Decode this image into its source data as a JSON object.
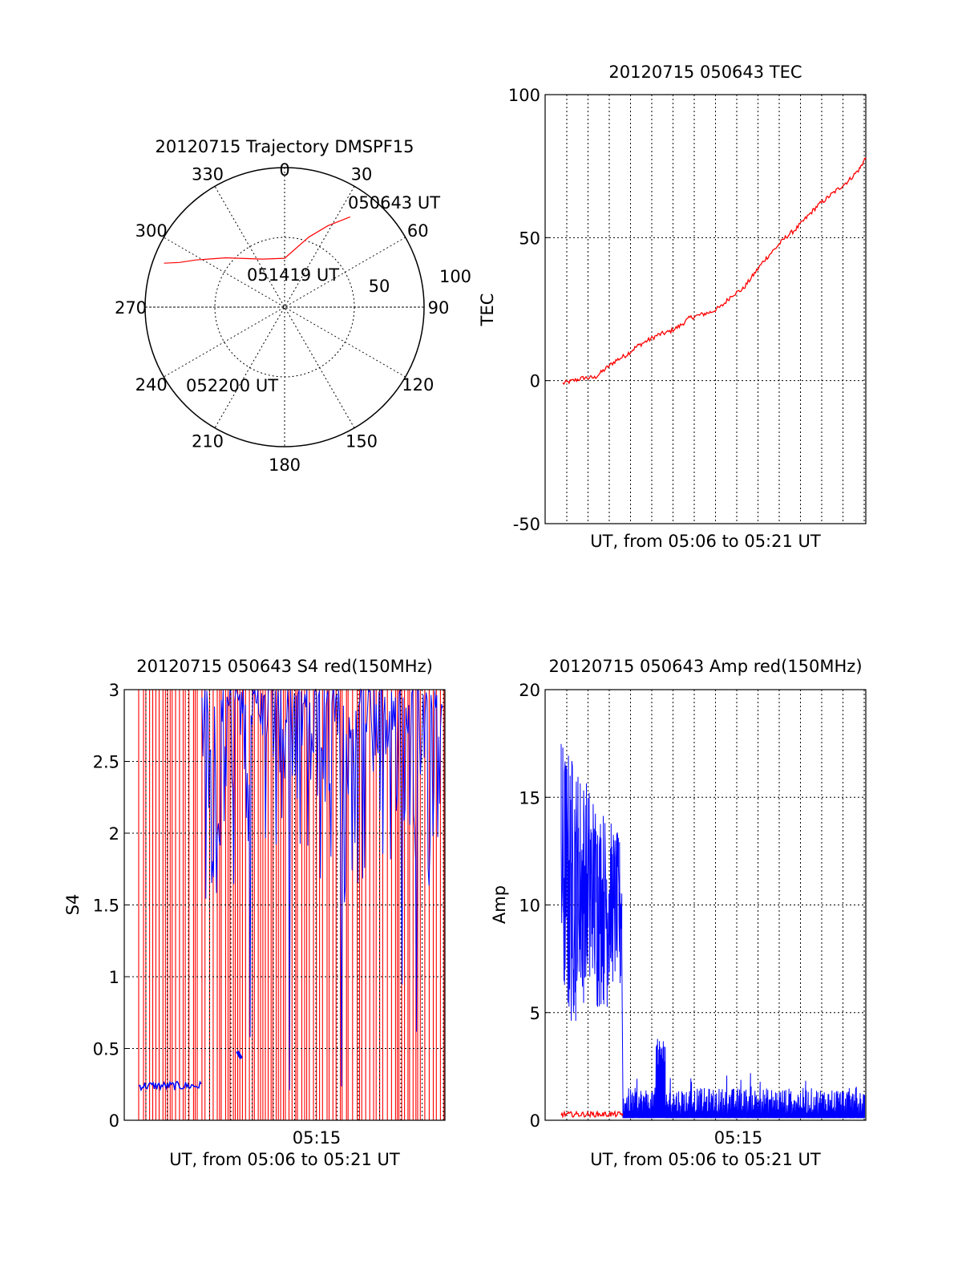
{
  "chart_data": [
    {
      "type": "polar-trajectory",
      "title": "20120715 Trajectory DMSPF15",
      "azimuth_labels": [
        "0",
        "30",
        "60",
        "90",
        "120",
        "150",
        "180",
        "210",
        "240",
        "270",
        "300",
        "330"
      ],
      "zenith_labels": [
        "50",
        "100"
      ],
      "trajectory": {
        "color": "#ff0000",
        "points": [
          [
            36,
            80
          ],
          [
            28,
            66
          ],
          [
            19,
            53
          ],
          [
            0,
            35
          ],
          [
            -25,
            38
          ],
          [
            -50,
            55
          ],
          [
            -62,
            72
          ],
          [
            -67,
            82
          ],
          [
            -70,
            92
          ]
        ]
      },
      "annotations": [
        "050643 UT",
        "051419 UT",
        "052200 UT"
      ]
    },
    {
      "type": "line",
      "title": "20120715 050643 TEC",
      "xlabel": "UT, from 05:06 to 05:21 UT",
      "ylabel": "TEC",
      "xlim": [
        0,
        15
      ],
      "ylim": [
        -50,
        100
      ],
      "yticks": [
        "100",
        "50",
        "0",
        "-50"
      ],
      "grid": true,
      "series": [
        {
          "color": "#ff0000",
          "x": [
            0.0,
            0.5,
            1.0,
            1.5,
            2.0,
            2.5,
            3.0,
            3.5,
            4.0,
            4.5,
            5.0,
            5.5,
            6.0,
            6.5,
            7.0,
            7.5,
            8.0,
            8.5,
            9.0,
            9.5,
            10.0,
            10.5,
            11.0,
            11.5,
            12.0,
            12.5,
            13.0,
            13.5,
            14.0,
            14.3
          ],
          "values": [
            -1,
            0,
            1,
            1,
            4,
            7,
            9,
            12,
            14,
            16,
            17,
            19,
            22,
            23,
            24,
            26,
            30,
            32,
            37,
            42,
            46,
            50,
            53,
            57,
            61,
            64,
            67,
            70,
            74,
            78
          ]
        }
      ]
    },
    {
      "type": "line",
      "title": "20120715 050643 S4 red(150MHz)",
      "xlabel": "UT, from 05:06 to 05:21 UT",
      "ylabel": "S4",
      "xlim": [
        0,
        15
      ],
      "ylim": [
        0,
        3
      ],
      "yticks": [
        "3",
        "2.5",
        "2",
        "1.5",
        "1",
        "0.5",
        "0"
      ],
      "xticks": [
        "05:15"
      ],
      "grid": true,
      "series": [
        {
          "color": "#0000ff",
          "description_values": "blue S4 ~0.2 from 05:06 to 05:09, then saturated 1.5–3 with drops"
        },
        {
          "color": "#ff0000",
          "description_values": "red S4 spikes from 0 to 3 throughout"
        }
      ]
    },
    {
      "type": "line",
      "title": "20120715 050643 Amp red(150MHz)",
      "xlabel": "UT, from 05:06 to 05:21 UT",
      "ylabel": "Amp",
      "xlim": [
        0,
        15
      ],
      "ylim": [
        0,
        20
      ],
      "yticks": [
        "20",
        "15",
        "10",
        "5",
        "0"
      ],
      "xticks": [
        "05:15"
      ],
      "grid": true,
      "series": [
        {
          "color": "#0000ff",
          "description_values": "blue amplitude 5–19 from 05:06 to 05:09, then ~0.5–2 with burst to 4 near 05:10"
        },
        {
          "color": "#ff0000",
          "description_values": "red amplitude ~0.2 near zero"
        }
      ]
    }
  ]
}
